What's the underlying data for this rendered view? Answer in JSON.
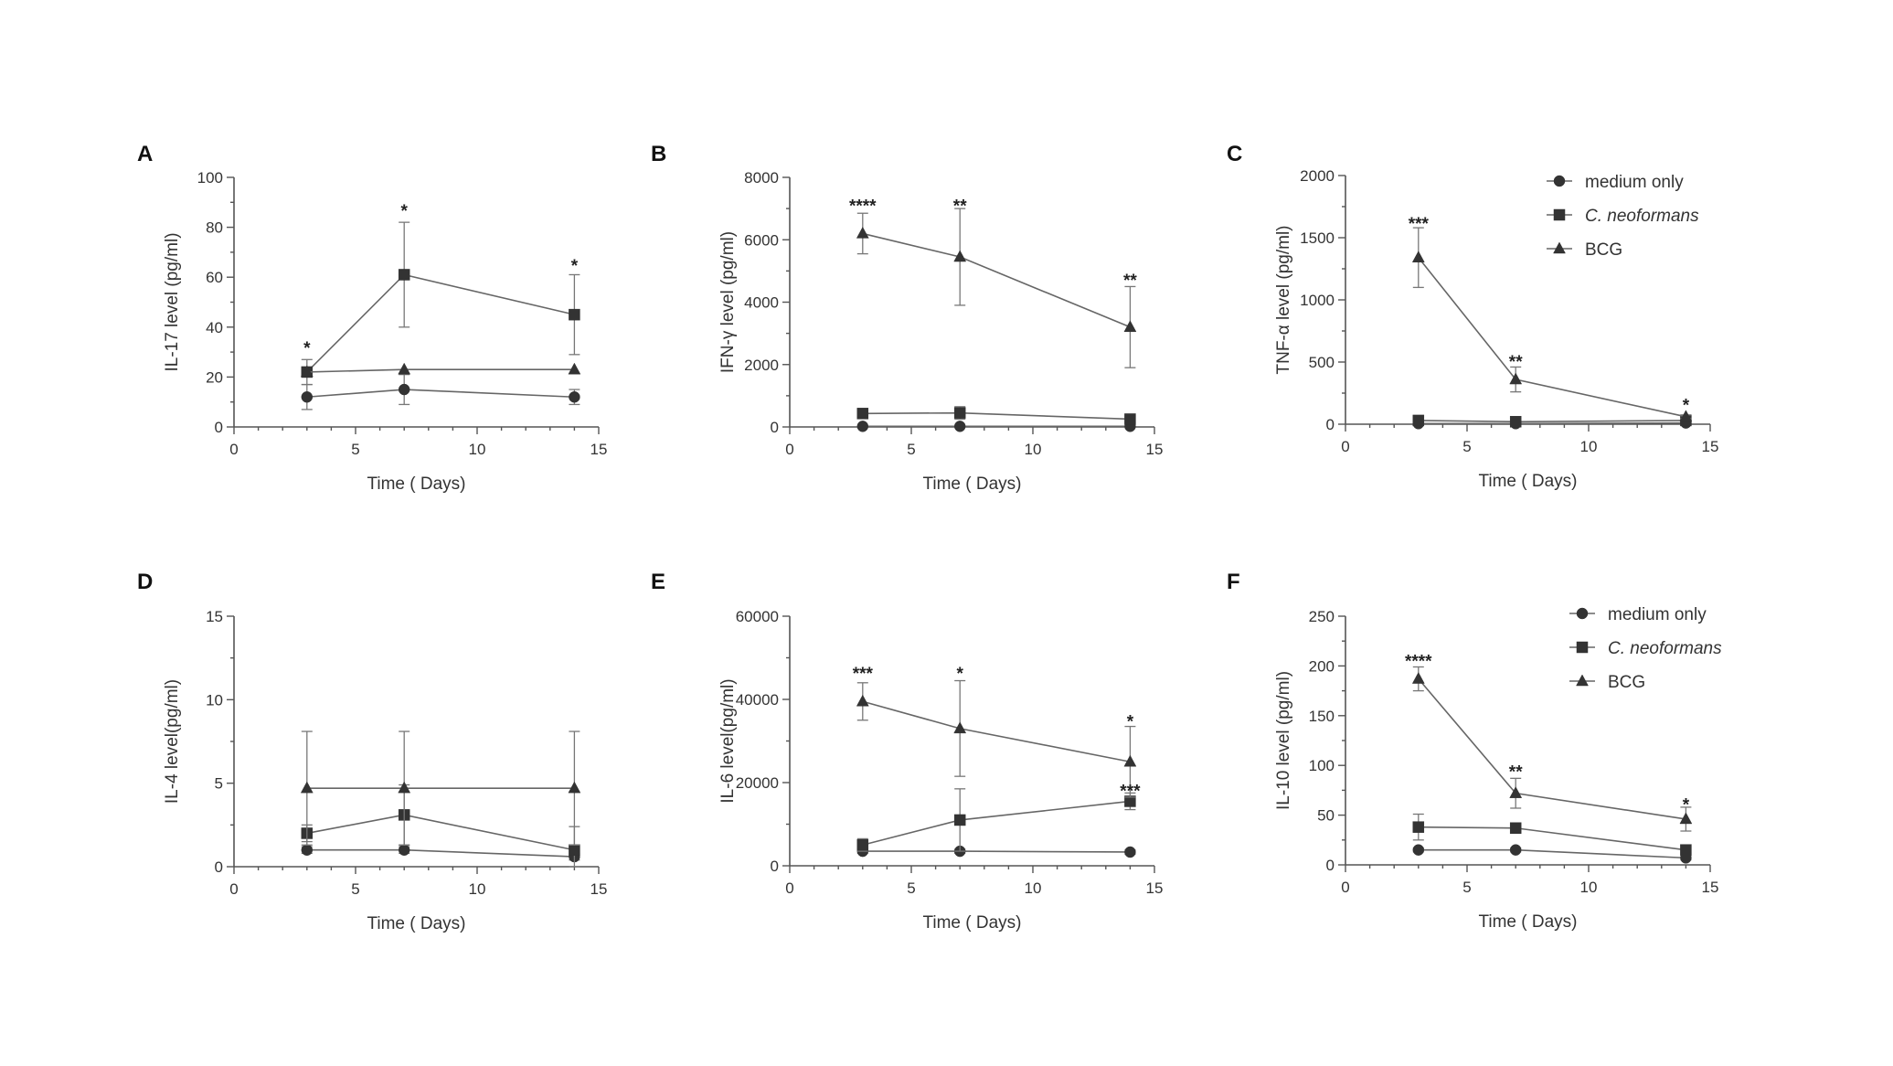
{
  "figure": {
    "legend": [
      {
        "label": "medium only",
        "marker": "circle",
        "italic": false
      },
      {
        "label": "C. neoformans",
        "marker": "square",
        "italic": true
      },
      {
        "label": "BCG",
        "marker": "triangle",
        "italic": false
      }
    ],
    "colors": {
      "axis": "#555555",
      "line": "#666666",
      "marker": "#333333",
      "errorbar": "#777777"
    }
  },
  "chart_data": [
    {
      "panel": "A",
      "type": "line",
      "legend": false,
      "xlabel": "Time ( Days)",
      "ylabel": "IL-17 level (pg/ml)",
      "xlim": [
        0,
        15
      ],
      "ylim": [
        0,
        100
      ],
      "xticks": [
        0,
        5,
        10,
        15
      ],
      "yticks": [
        0,
        20,
        40,
        60,
        80,
        100
      ],
      "ytick_labels": [
        "0",
        "20",
        "40",
        "60",
        "80",
        "100"
      ],
      "x": [
        3,
        7,
        14
      ],
      "series": [
        {
          "name": "medium only",
          "marker": "circle",
          "values": [
            12,
            15,
            12
          ],
          "errors": [
            5,
            6,
            3
          ]
        },
        {
          "name": "C. neoformans",
          "marker": "square",
          "values": [
            22,
            61,
            45
          ],
          "errors": [
            5,
            21,
            16
          ]
        },
        {
          "name": "BCG",
          "marker": "triangle",
          "values": [
            22,
            23,
            23
          ],
          "errors": [
            0,
            0,
            0
          ]
        }
      ],
      "annotations": [
        {
          "x": 3,
          "y": 33,
          "text": "*"
        },
        {
          "x": 7,
          "y": 88,
          "text": "*"
        },
        {
          "x": 14,
          "y": 66,
          "text": "*"
        }
      ]
    },
    {
      "panel": "B",
      "type": "line",
      "legend": false,
      "xlabel": "Time ( Days)",
      "ylabel": "IFN-γ level (pg/ml)",
      "xlim": [
        0,
        15
      ],
      "ylim": [
        0,
        8000
      ],
      "xticks": [
        0,
        5,
        10,
        15
      ],
      "yticks": [
        0,
        2000,
        4000,
        6000,
        8000
      ],
      "ytick_labels": [
        "0",
        "2000",
        "4000",
        "6000",
        "8000"
      ],
      "x": [
        3,
        7,
        14
      ],
      "series": [
        {
          "name": "medium only",
          "marker": "circle",
          "values": [
            20,
            20,
            20
          ],
          "errors": [
            0,
            0,
            0
          ]
        },
        {
          "name": "C. neoformans",
          "marker": "square",
          "values": [
            430,
            450,
            250
          ],
          "errors": [
            100,
            200,
            100
          ]
        },
        {
          "name": "BCG",
          "marker": "triangle",
          "values": [
            6200,
            5450,
            3200
          ],
          "errors": [
            650,
            1550,
            1300
          ]
        }
      ],
      "annotations": [
        {
          "x": 3,
          "y": 7200,
          "text": "****"
        },
        {
          "x": 7,
          "y": 7200,
          "text": "**"
        },
        {
          "x": 14,
          "y": 4800,
          "text": "**"
        }
      ]
    },
    {
      "panel": "C",
      "type": "line",
      "legend": true,
      "xlabel": "Time ( Days)",
      "ylabel": "TNF-α level (pg/ml)",
      "xlim": [
        0,
        15
      ],
      "ylim": [
        0,
        2000
      ],
      "xticks": [
        0,
        5,
        10,
        15
      ],
      "yticks": [
        0,
        500,
        1000,
        1500,
        2000
      ],
      "ytick_labels": [
        "0",
        "500",
        "1000",
        "1500",
        "2000"
      ],
      "x": [
        3,
        7,
        14
      ],
      "series": [
        {
          "name": "medium only",
          "marker": "circle",
          "values": [
            5,
            5,
            10
          ],
          "errors": [
            0,
            0,
            0
          ]
        },
        {
          "name": "C. neoformans",
          "marker": "square",
          "values": [
            30,
            20,
            30
          ],
          "errors": [
            10,
            10,
            10
          ]
        },
        {
          "name": "BCG",
          "marker": "triangle",
          "values": [
            1340,
            360,
            60
          ],
          "errors": [
            240,
            100,
            15
          ]
        }
      ],
      "annotations": [
        {
          "x": 3,
          "y": 1640,
          "text": "***"
        },
        {
          "x": 7,
          "y": 530,
          "text": "**"
        },
        {
          "x": 14,
          "y": 180,
          "text": "*"
        }
      ]
    },
    {
      "panel": "D",
      "type": "line",
      "legend": false,
      "xlabel": "Time ( Days)",
      "ylabel": "IL-4 level(pg/ml)",
      "xlim": [
        0,
        15
      ],
      "ylim": [
        0,
        15
      ],
      "xticks": [
        0,
        5,
        10,
        15
      ],
      "yticks": [
        0,
        5,
        10,
        15
      ],
      "ytick_labels": [
        "0",
        "5",
        "10",
        "15"
      ],
      "x": [
        3,
        7,
        14
      ],
      "series": [
        {
          "name": "medium only",
          "marker": "circle",
          "values": [
            1.0,
            1.0,
            0.6
          ],
          "errors": [
            0.2,
            0.2,
            0.2
          ]
        },
        {
          "name": "C. neoformans",
          "marker": "square",
          "values": [
            2.0,
            3.1,
            1.0
          ],
          "errors": [
            0.5,
            1.8,
            1.4
          ]
        },
        {
          "name": "BCG",
          "marker": "triangle",
          "values": [
            4.7,
            4.7,
            4.7
          ],
          "errors": [
            3.4,
            3.4,
            3.4
          ]
        }
      ],
      "annotations": []
    },
    {
      "panel": "E",
      "type": "line",
      "legend": false,
      "xlabel": "Time ( Days)",
      "ylabel": "IL-6 level(pg/ml)",
      "xlim": [
        0,
        15
      ],
      "ylim": [
        0,
        60000
      ],
      "xticks": [
        0,
        5,
        10,
        15
      ],
      "yticks": [
        0,
        20000,
        40000,
        60000
      ],
      "ytick_labels": [
        "0",
        "20000",
        "40000",
        "60000"
      ],
      "x": [
        3,
        7,
        14
      ],
      "series": [
        {
          "name": "medium only",
          "marker": "circle",
          "values": [
            3500,
            3500,
            3300
          ],
          "errors": [
            500,
            500,
            500
          ]
        },
        {
          "name": "C. neoformans",
          "marker": "square",
          "values": [
            5000,
            11000,
            15500
          ],
          "errors": [
            1500,
            7500,
            2000
          ]
        },
        {
          "name": "BCG",
          "marker": "triangle",
          "values": [
            39500,
            33000,
            25000
          ],
          "errors": [
            4500,
            11500,
            8500
          ]
        }
      ],
      "annotations": [
        {
          "x": 3,
          "y": 47000,
          "text": "***"
        },
        {
          "x": 7,
          "y": 47000,
          "text": "*"
        },
        {
          "x": 14,
          "y": 35500,
          "text": "*"
        },
        {
          "x": 14,
          "y": 18800,
          "text": "***"
        }
      ]
    },
    {
      "panel": "F",
      "type": "line",
      "legend": true,
      "xlabel": "Time ( Days)",
      "ylabel": "IL-10 level (pg/ml)",
      "xlim": [
        0,
        15
      ],
      "ylim": [
        0,
        250
      ],
      "xticks": [
        0,
        5,
        10,
        15
      ],
      "yticks": [
        0,
        50,
        100,
        150,
        200,
        250
      ],
      "ytick_labels": [
        "0",
        "50",
        "100",
        "150",
        "200",
        "250"
      ],
      "x": [
        3,
        7,
        14
      ],
      "series": [
        {
          "name": "medium only",
          "marker": "circle",
          "values": [
            15,
            15,
            7
          ],
          "errors": [
            2,
            2,
            2
          ]
        },
        {
          "name": "C. neoformans",
          "marker": "square",
          "values": [
            38,
            37,
            15
          ],
          "errors": [
            13,
            3,
            3
          ]
        },
        {
          "name": "BCG",
          "marker": "triangle",
          "values": [
            187,
            72,
            46
          ],
          "errors": [
            12,
            15,
            12
          ]
        }
      ],
      "annotations": [
        {
          "x": 3,
          "y": 208,
          "text": "****"
        },
        {
          "x": 7,
          "y": 97,
          "text": "**"
        },
        {
          "x": 14,
          "y": 64,
          "text": "*"
        }
      ]
    }
  ]
}
